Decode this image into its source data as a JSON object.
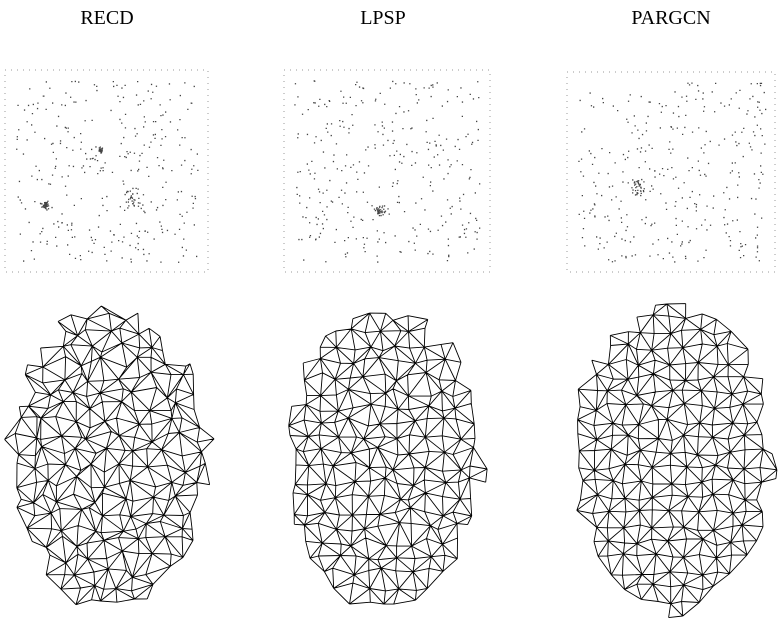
{
  "columns": [
    {
      "title": "RECD"
    },
    {
      "title": "LPSP"
    },
    {
      "title": "PARGCN"
    }
  ]
}
